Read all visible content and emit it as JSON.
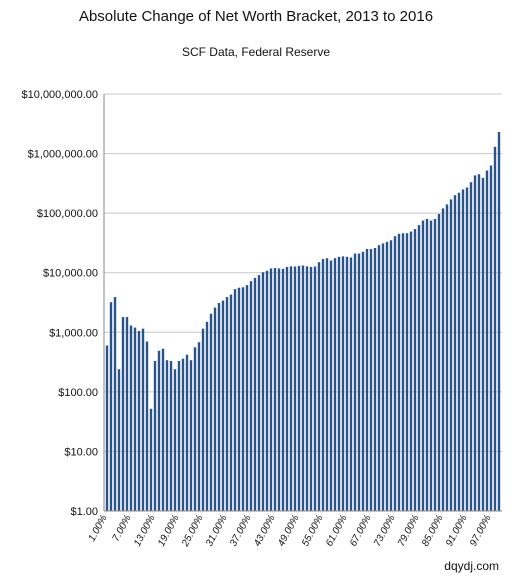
{
  "chart_data": {
    "type": "bar",
    "title": "Absolute Change of Net Worth Bracket, 2013 to 2016",
    "subtitle": "SCF Data, Federal Reserve",
    "credit": "dqydj.com",
    "xlabel": "",
    "ylabel": "",
    "y_scale": "log",
    "ylim": [
      1,
      10000000
    ],
    "grid": true,
    "series_color": "#2a5387",
    "y_tick_values": [
      1,
      10,
      100,
      1000,
      10000,
      100000,
      1000000,
      10000000
    ],
    "y_tick_labels": [
      "$1.00",
      "$10.00",
      "$100.00",
      "$1,000.00",
      "$10,000.00",
      "$100,000.00",
      "$1,000,000.00",
      "$10,000,000.00"
    ],
    "x_tick_labels": [
      "1.00%",
      "7.00%",
      "13.00%",
      "19.00%",
      "25.00%",
      "31.00%",
      "37.00%",
      "43.00%",
      "49.00%",
      "55.00%",
      "61.00%",
      "67.00%",
      "73.00%",
      "79.00%",
      "85.00%",
      "91.00%",
      "97.00%"
    ],
    "categories": [
      "1.00%",
      "2.00%",
      "3.00%",
      "4.00%",
      "5.00%",
      "6.00%",
      "7.00%",
      "8.00%",
      "9.00%",
      "10.00%",
      "11.00%",
      "12.00%",
      "13.00%",
      "14.00%",
      "15.00%",
      "16.00%",
      "17.00%",
      "18.00%",
      "19.00%",
      "20.00%",
      "21.00%",
      "22.00%",
      "23.00%",
      "24.00%",
      "25.00%",
      "26.00%",
      "27.00%",
      "28.00%",
      "29.00%",
      "30.00%",
      "31.00%",
      "32.00%",
      "33.00%",
      "34.00%",
      "35.00%",
      "36.00%",
      "37.00%",
      "38.00%",
      "39.00%",
      "40.00%",
      "41.00%",
      "42.00%",
      "43.00%",
      "44.00%",
      "45.00%",
      "46.00%",
      "47.00%",
      "48.00%",
      "49.00%",
      "50.00%",
      "51.00%",
      "52.00%",
      "53.00%",
      "54.00%",
      "55.00%",
      "56.00%",
      "57.00%",
      "58.00%",
      "59.00%",
      "60.00%",
      "61.00%",
      "62.00%",
      "63.00%",
      "64.00%",
      "65.00%",
      "66.00%",
      "67.00%",
      "68.00%",
      "69.00%",
      "70.00%",
      "71.00%",
      "72.00%",
      "73.00%",
      "74.00%",
      "75.00%",
      "76.00%",
      "77.00%",
      "78.00%",
      "79.00%",
      "80.00%",
      "81.00%",
      "82.00%",
      "83.00%",
      "84.00%",
      "85.00%",
      "86.00%",
      "87.00%",
      "88.00%",
      "89.00%",
      "90.00%",
      "91.00%",
      "92.00%",
      "93.00%",
      "94.00%",
      "95.00%",
      "96.00%",
      "97.00%",
      "98.00%",
      "99.00%"
    ],
    "values": [
      600,
      3200,
      3900,
      240,
      1800,
      1800,
      1300,
      1200,
      1050,
      1150,
      700,
      52,
      330,
      490,
      530,
      340,
      330,
      240,
      330,
      360,
      420,
      340,
      560,
      680,
      1150,
      1500,
      2050,
      2600,
      3100,
      3400,
      3900,
      4300,
      5300,
      5600,
      5700,
      6200,
      7200,
      8200,
      9100,
      10200,
      10800,
      11800,
      12000,
      11800,
      11600,
      12500,
      12800,
      12700,
      13000,
      13200,
      12800,
      12500,
      12700,
      15000,
      17000,
      17500,
      16000,
      17500,
      18500,
      18800,
      18500,
      18000,
      21000,
      21000,
      22500,
      25000,
      25000,
      26000,
      29000,
      31000,
      33000,
      35000,
      41000,
      45000,
      46000,
      46000,
      49000,
      54000,
      63000,
      75000,
      80000,
      75000,
      80000,
      97000,
      120000,
      140000,
      170000,
      200000,
      220000,
      250000,
      270000,
      330000,
      430000,
      450000,
      390000,
      520000,
      630000,
      1300000,
      2300000
    ]
  }
}
